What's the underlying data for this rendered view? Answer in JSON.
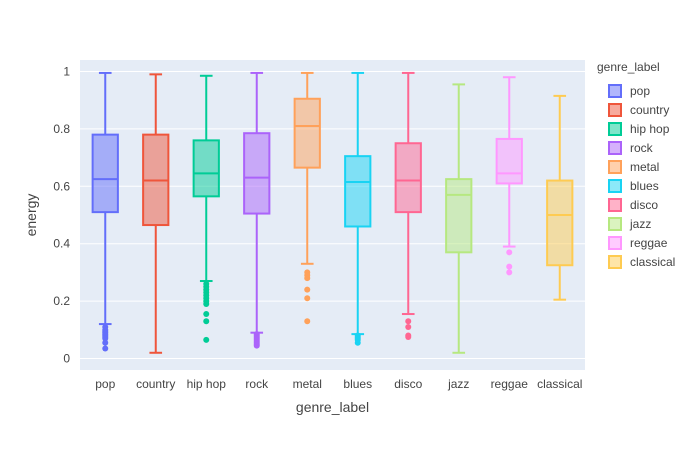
{
  "chart_data": {
    "type": "box",
    "xlabel": "genre_label",
    "ylabel": "energy",
    "ylim": [
      -0.04,
      1.04
    ],
    "yticks": [
      0,
      0.2,
      0.4,
      0.6,
      0.8,
      1
    ],
    "ytick_labels": [
      "0",
      "0.2",
      "0.4",
      "0.6",
      "0.8",
      "1"
    ],
    "grid": true,
    "legend_title": "genre_label",
    "legend_position": "right",
    "categories": [
      "pop",
      "country",
      "hip hop",
      "rock",
      "metal",
      "blues",
      "disco",
      "jazz",
      "reggae",
      "classical"
    ],
    "series": [
      {
        "name": "pop",
        "color": "#636efa",
        "min": 0.12,
        "q1": 0.51,
        "median": 0.625,
        "q3": 0.78,
        "max": 0.995,
        "outliers": [
          0.11,
          0.1,
          0.095,
          0.09,
          0.085,
          0.08,
          0.075,
          0.07,
          0.055,
          0.035
        ]
      },
      {
        "name": "country",
        "color": "#EF553B",
        "min": 0.02,
        "q1": 0.465,
        "median": 0.62,
        "q3": 0.78,
        "max": 0.99,
        "outliers": []
      },
      {
        "name": "hip hop",
        "color": "#00cc96",
        "min": 0.27,
        "q1": 0.565,
        "median": 0.645,
        "q3": 0.76,
        "max": 0.985,
        "outliers": [
          0.26,
          0.25,
          0.24,
          0.23,
          0.22,
          0.21,
          0.2,
          0.19,
          0.155,
          0.13,
          0.065
        ]
      },
      {
        "name": "rock",
        "color": "#ab63fa",
        "min": 0.09,
        "q1": 0.505,
        "median": 0.63,
        "q3": 0.785,
        "max": 0.995,
        "outliers": [
          0.085,
          0.08,
          0.075,
          0.07,
          0.065,
          0.06,
          0.055,
          0.05,
          0.045
        ]
      },
      {
        "name": "metal",
        "color": "#FFA15A",
        "min": 0.33,
        "q1": 0.665,
        "median": 0.81,
        "q3": 0.905,
        "max": 0.995,
        "outliers": [
          0.3,
          0.29,
          0.28,
          0.24,
          0.21,
          0.13
        ]
      },
      {
        "name": "blues",
        "color": "#19d3f3",
        "min": 0.085,
        "q1": 0.46,
        "median": 0.615,
        "q3": 0.705,
        "max": 0.995,
        "outliers": [
          0.08,
          0.075,
          0.07,
          0.065,
          0.055
        ]
      },
      {
        "name": "disco",
        "color": "#FF6692",
        "min": 0.155,
        "q1": 0.51,
        "median": 0.62,
        "q3": 0.75,
        "max": 0.995,
        "outliers": [
          0.13,
          0.11,
          0.08,
          0.075
        ]
      },
      {
        "name": "jazz",
        "color": "#B6E880",
        "min": 0.02,
        "q1": 0.37,
        "median": 0.57,
        "q3": 0.625,
        "max": 0.955,
        "outliers": []
      },
      {
        "name": "reggae",
        "color": "#FF97FF",
        "min": 0.39,
        "q1": 0.61,
        "median": 0.645,
        "q3": 0.765,
        "max": 0.98,
        "outliers": [
          0.37,
          0.32,
          0.3
        ]
      },
      {
        "name": "classical",
        "color": "#FECB52",
        "min": 0.205,
        "q1": 0.325,
        "median": 0.5,
        "q3": 0.62,
        "max": 0.915,
        "outliers": []
      }
    ]
  }
}
